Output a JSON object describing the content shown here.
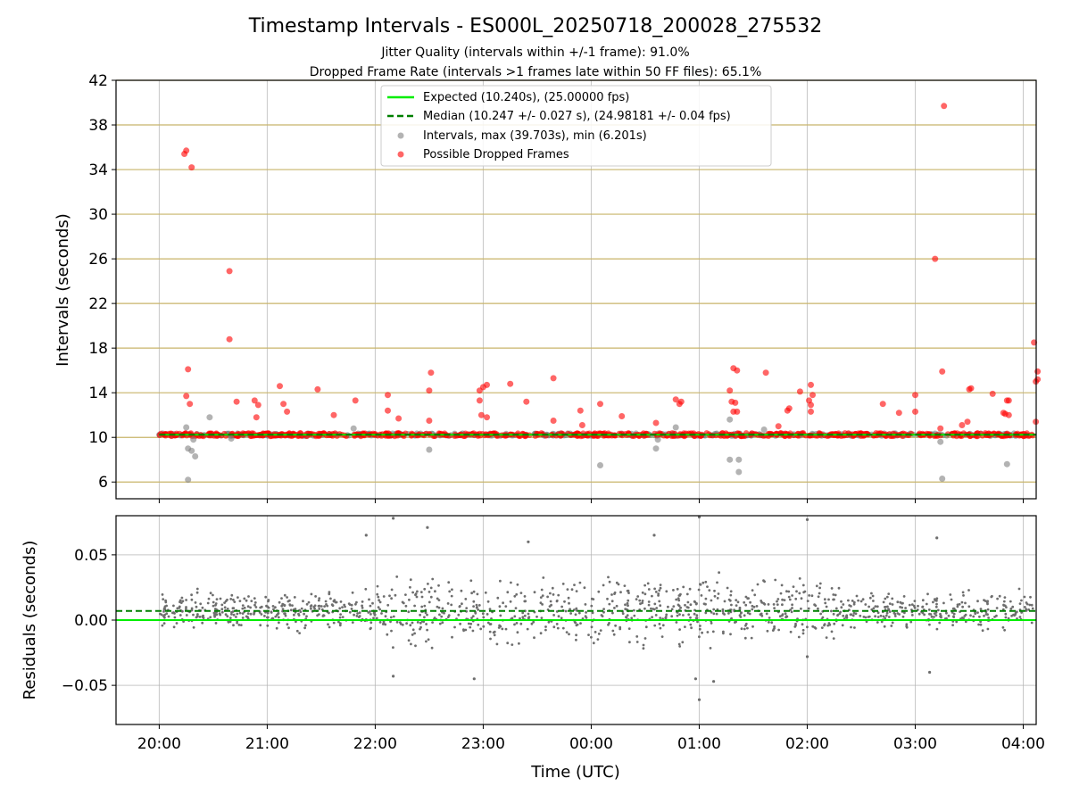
{
  "chart_data": [
    {
      "type": "scatter",
      "title": "Timestamp Intervals - ES000L_20250718_200028_275532",
      "subtitle_1": "Jitter Quality (intervals within +/-1 frame): 91.0%",
      "subtitle_2": "Dropped Frame Rate (intervals >1 frames late within 50 FF files): 65.1%",
      "ylabel": "Intervals (seconds)",
      "ylim": [
        4.5,
        42
      ],
      "yticks": [
        6,
        10,
        14,
        18,
        22,
        26,
        30,
        34,
        38,
        42
      ],
      "ytick_labels": [
        "6",
        "10",
        "14",
        "18",
        "22",
        "26",
        "30",
        "34",
        "38",
        "42"
      ],
      "xlim_hours": [
        19.6,
        28.12
      ],
      "grid": "on",
      "legend_placement": "top-center",
      "expected_interval": 10.24,
      "median_interval": 10.247,
      "series": [
        {
          "name": "Expected (10.240s), (25.00000 fps)",
          "style": "solid-line",
          "color": "#00ee00"
        },
        {
          "name": "Median (10.247 +/- 0.027 s), (24.98181 +/- 0.04 fps)",
          "style": "dashed-line",
          "color": "#007f00"
        },
        {
          "name": "Intervals, max (39.703s), min (6.201s)",
          "style": "markers",
          "color": "#808080",
          "points": [
            {
              "x": "20:16",
              "y": 6.2
            },
            {
              "x": "20:16",
              "y": 9.0
            },
            {
              "x": "20:18",
              "y": 8.8
            },
            {
              "x": "20:20",
              "y": 8.3
            },
            {
              "x": "20:19",
              "y": 9.8
            },
            {
              "x": "20:15",
              "y": 10.9
            },
            {
              "x": "20:28",
              "y": 11.8
            },
            {
              "x": "20:40",
              "y": 9.9
            },
            {
              "x": "21:48",
              "y": 10.8
            },
            {
              "x": "22:30",
              "y": 8.9
            },
            {
              "x": "00:05",
              "y": 7.5
            },
            {
              "x": "00:36",
              "y": 9.0
            },
            {
              "x": "00:37",
              "y": 9.8
            },
            {
              "x": "00:47",
              "y": 10.9
            },
            {
              "x": "01:17",
              "y": 8.0
            },
            {
              "x": "01:22",
              "y": 8.0
            },
            {
              "x": "01:22",
              "y": 6.9
            },
            {
              "x": "01:17",
              "y": 11.6
            },
            {
              "x": "03:15",
              "y": 6.3
            },
            {
              "x": "03:14",
              "y": 9.6
            },
            {
              "x": "03:51",
              "y": 7.6
            },
            {
              "x": "01:36",
              "y": 10.7
            }
          ]
        },
        {
          "name": "Possible Dropped Frames",
          "style": "markers",
          "color": "#ff0000",
          "points": [
            {
              "x": "20:14",
              "y": 35.4
            },
            {
              "x": "20:15",
              "y": 35.7
            },
            {
              "x": "20:18",
              "y": 34.2
            },
            {
              "x": "20:16",
              "y": 16.1
            },
            {
              "x": "20:15",
              "y": 13.7
            },
            {
              "x": "20:17",
              "y": 13.0
            },
            {
              "x": "20:39",
              "y": 24.9
            },
            {
              "x": "20:39",
              "y": 18.8
            },
            {
              "x": "20:43",
              "y": 13.2
            },
            {
              "x": "20:53",
              "y": 13.3
            },
            {
              "x": "20:54",
              "y": 11.8
            },
            {
              "x": "20:55",
              "y": 12.9
            },
            {
              "x": "21:07",
              "y": 14.6
            },
            {
              "x": "21:09",
              "y": 13.0
            },
            {
              "x": "21:11",
              "y": 12.3
            },
            {
              "x": "21:28",
              "y": 14.3
            },
            {
              "x": "21:37",
              "y": 12.0
            },
            {
              "x": "21:49",
              "y": 13.3
            },
            {
              "x": "22:07",
              "y": 13.8
            },
            {
              "x": "22:07",
              "y": 12.4
            },
            {
              "x": "22:13",
              "y": 11.7
            },
            {
              "x": "22:31",
              "y": 15.8
            },
            {
              "x": "22:30",
              "y": 14.2
            },
            {
              "x": "22:30",
              "y": 11.5
            },
            {
              "x": "22:58",
              "y": 14.2
            },
            {
              "x": "22:58",
              "y": 13.3
            },
            {
              "x": "22:59",
              "y": 12.0
            },
            {
              "x": "23:00",
              "y": 14.5
            },
            {
              "x": "23:02",
              "y": 14.7
            },
            {
              "x": "23:02",
              "y": 11.8
            },
            {
              "x": "23:15",
              "y": 14.8
            },
            {
              "x": "23:24",
              "y": 13.2
            },
            {
              "x": "23:39",
              "y": 15.3
            },
            {
              "x": "23:39",
              "y": 11.5
            },
            {
              "x": "23:54",
              "y": 12.4
            },
            {
              "x": "23:55",
              "y": 11.1
            },
            {
              "x": "00:05",
              "y": 13.0
            },
            {
              "x": "00:17",
              "y": 11.9
            },
            {
              "x": "00:36",
              "y": 11.3
            },
            {
              "x": "00:47",
              "y": 13.4
            },
            {
              "x": "00:49",
              "y": 13.0
            },
            {
              "x": "00:50",
              "y": 13.2
            },
            {
              "x": "01:17",
              "y": 14.2
            },
            {
              "x": "01:19",
              "y": 16.2
            },
            {
              "x": "01:21",
              "y": 16.0
            },
            {
              "x": "01:18",
              "y": 13.2
            },
            {
              "x": "01:20",
              "y": 13.1
            },
            {
              "x": "01:19",
              "y": 12.3
            },
            {
              "x": "01:21",
              "y": 12.3
            },
            {
              "x": "01:37",
              "y": 15.8
            },
            {
              "x": "01:44",
              "y": 11.0
            },
            {
              "x": "01:49",
              "y": 12.4
            },
            {
              "x": "01:50",
              "y": 12.6
            },
            {
              "x": "01:56",
              "y": 14.1
            },
            {
              "x": "02:02",
              "y": 14.7
            },
            {
              "x": "02:03",
              "y": 13.8
            },
            {
              "x": "02:01",
              "y": 13.3
            },
            {
              "x": "02:02",
              "y": 12.9
            },
            {
              "x": "02:02",
              "y": 12.3
            },
            {
              "x": "02:42",
              "y": 13.0
            },
            {
              "x": "02:51",
              "y": 12.2
            },
            {
              "x": "03:00",
              "y": 13.8
            },
            {
              "x": "03:00",
              "y": 12.3
            },
            {
              "x": "03:11",
              "y": 26.0
            },
            {
              "x": "03:16",
              "y": 39.7
            },
            {
              "x": "03:15",
              "y": 15.9
            },
            {
              "x": "03:14",
              "y": 10.8
            },
            {
              "x": "03:26",
              "y": 11.1
            },
            {
              "x": "03:30",
              "y": 14.3
            },
            {
              "x": "03:31",
              "y": 14.4
            },
            {
              "x": "03:29",
              "y": 11.4
            },
            {
              "x": "03:43",
              "y": 13.9
            },
            {
              "x": "03:49",
              "y": 12.2
            },
            {
              "x": "03:50",
              "y": 12.1
            },
            {
              "x": "03:51",
              "y": 13.3
            },
            {
              "x": "03:52",
              "y": 13.3
            },
            {
              "x": "03:52",
              "y": 12.0
            },
            {
              "x": "04:06",
              "y": 18.5
            },
            {
              "x": "04:07",
              "y": 15.0
            },
            {
              "x": "04:08",
              "y": 15.2
            },
            {
              "x": "04:08",
              "y": 15.9
            },
            {
              "x": "04:07",
              "y": 11.4
            }
          ]
        }
      ]
    },
    {
      "type": "scatter",
      "xlabel": "Time (UTC)",
      "ylabel": "Residuals (seconds)",
      "ylim": [
        -0.08,
        0.08
      ],
      "yticks": [
        -0.05,
        0.0,
        0.05
      ],
      "ytick_labels": [
        "−0.05",
        "0.00",
        "0.05"
      ],
      "xticks": [
        "20:00",
        "21:00",
        "22:00",
        "23:00",
        "00:00",
        "01:00",
        "02:00",
        "03:00",
        "04:00"
      ],
      "xlim_hours": [
        19.6,
        28.12
      ],
      "grid": "on",
      "zero_line": 0.0,
      "median_residual": 0.007,
      "series": [
        {
          "name": "",
          "style": "markers",
          "color": "#6e6e6e",
          "points": [
            {
              "x": "22:10",
              "y": 0.078
            },
            {
              "x": "22:29",
              "y": 0.071
            },
            {
              "x": "01:00",
              "y": 0.079
            },
            {
              "x": "02:00",
              "y": 0.077
            },
            {
              "x": "21:55",
              "y": 0.065
            },
            {
              "x": "23:25",
              "y": 0.06
            },
            {
              "x": "00:35",
              "y": 0.065
            },
            {
              "x": "03:12",
              "y": 0.063
            },
            {
              "x": "01:00",
              "y": -0.061
            },
            {
              "x": "00:58",
              "y": -0.045
            },
            {
              "x": "01:08",
              "y": -0.047
            },
            {
              "x": "22:55",
              "y": -0.045
            },
            {
              "x": "22:10",
              "y": -0.043
            },
            {
              "x": "02:00",
              "y": -0.028
            },
            {
              "x": "03:08",
              "y": -0.04
            }
          ]
        }
      ]
    }
  ]
}
